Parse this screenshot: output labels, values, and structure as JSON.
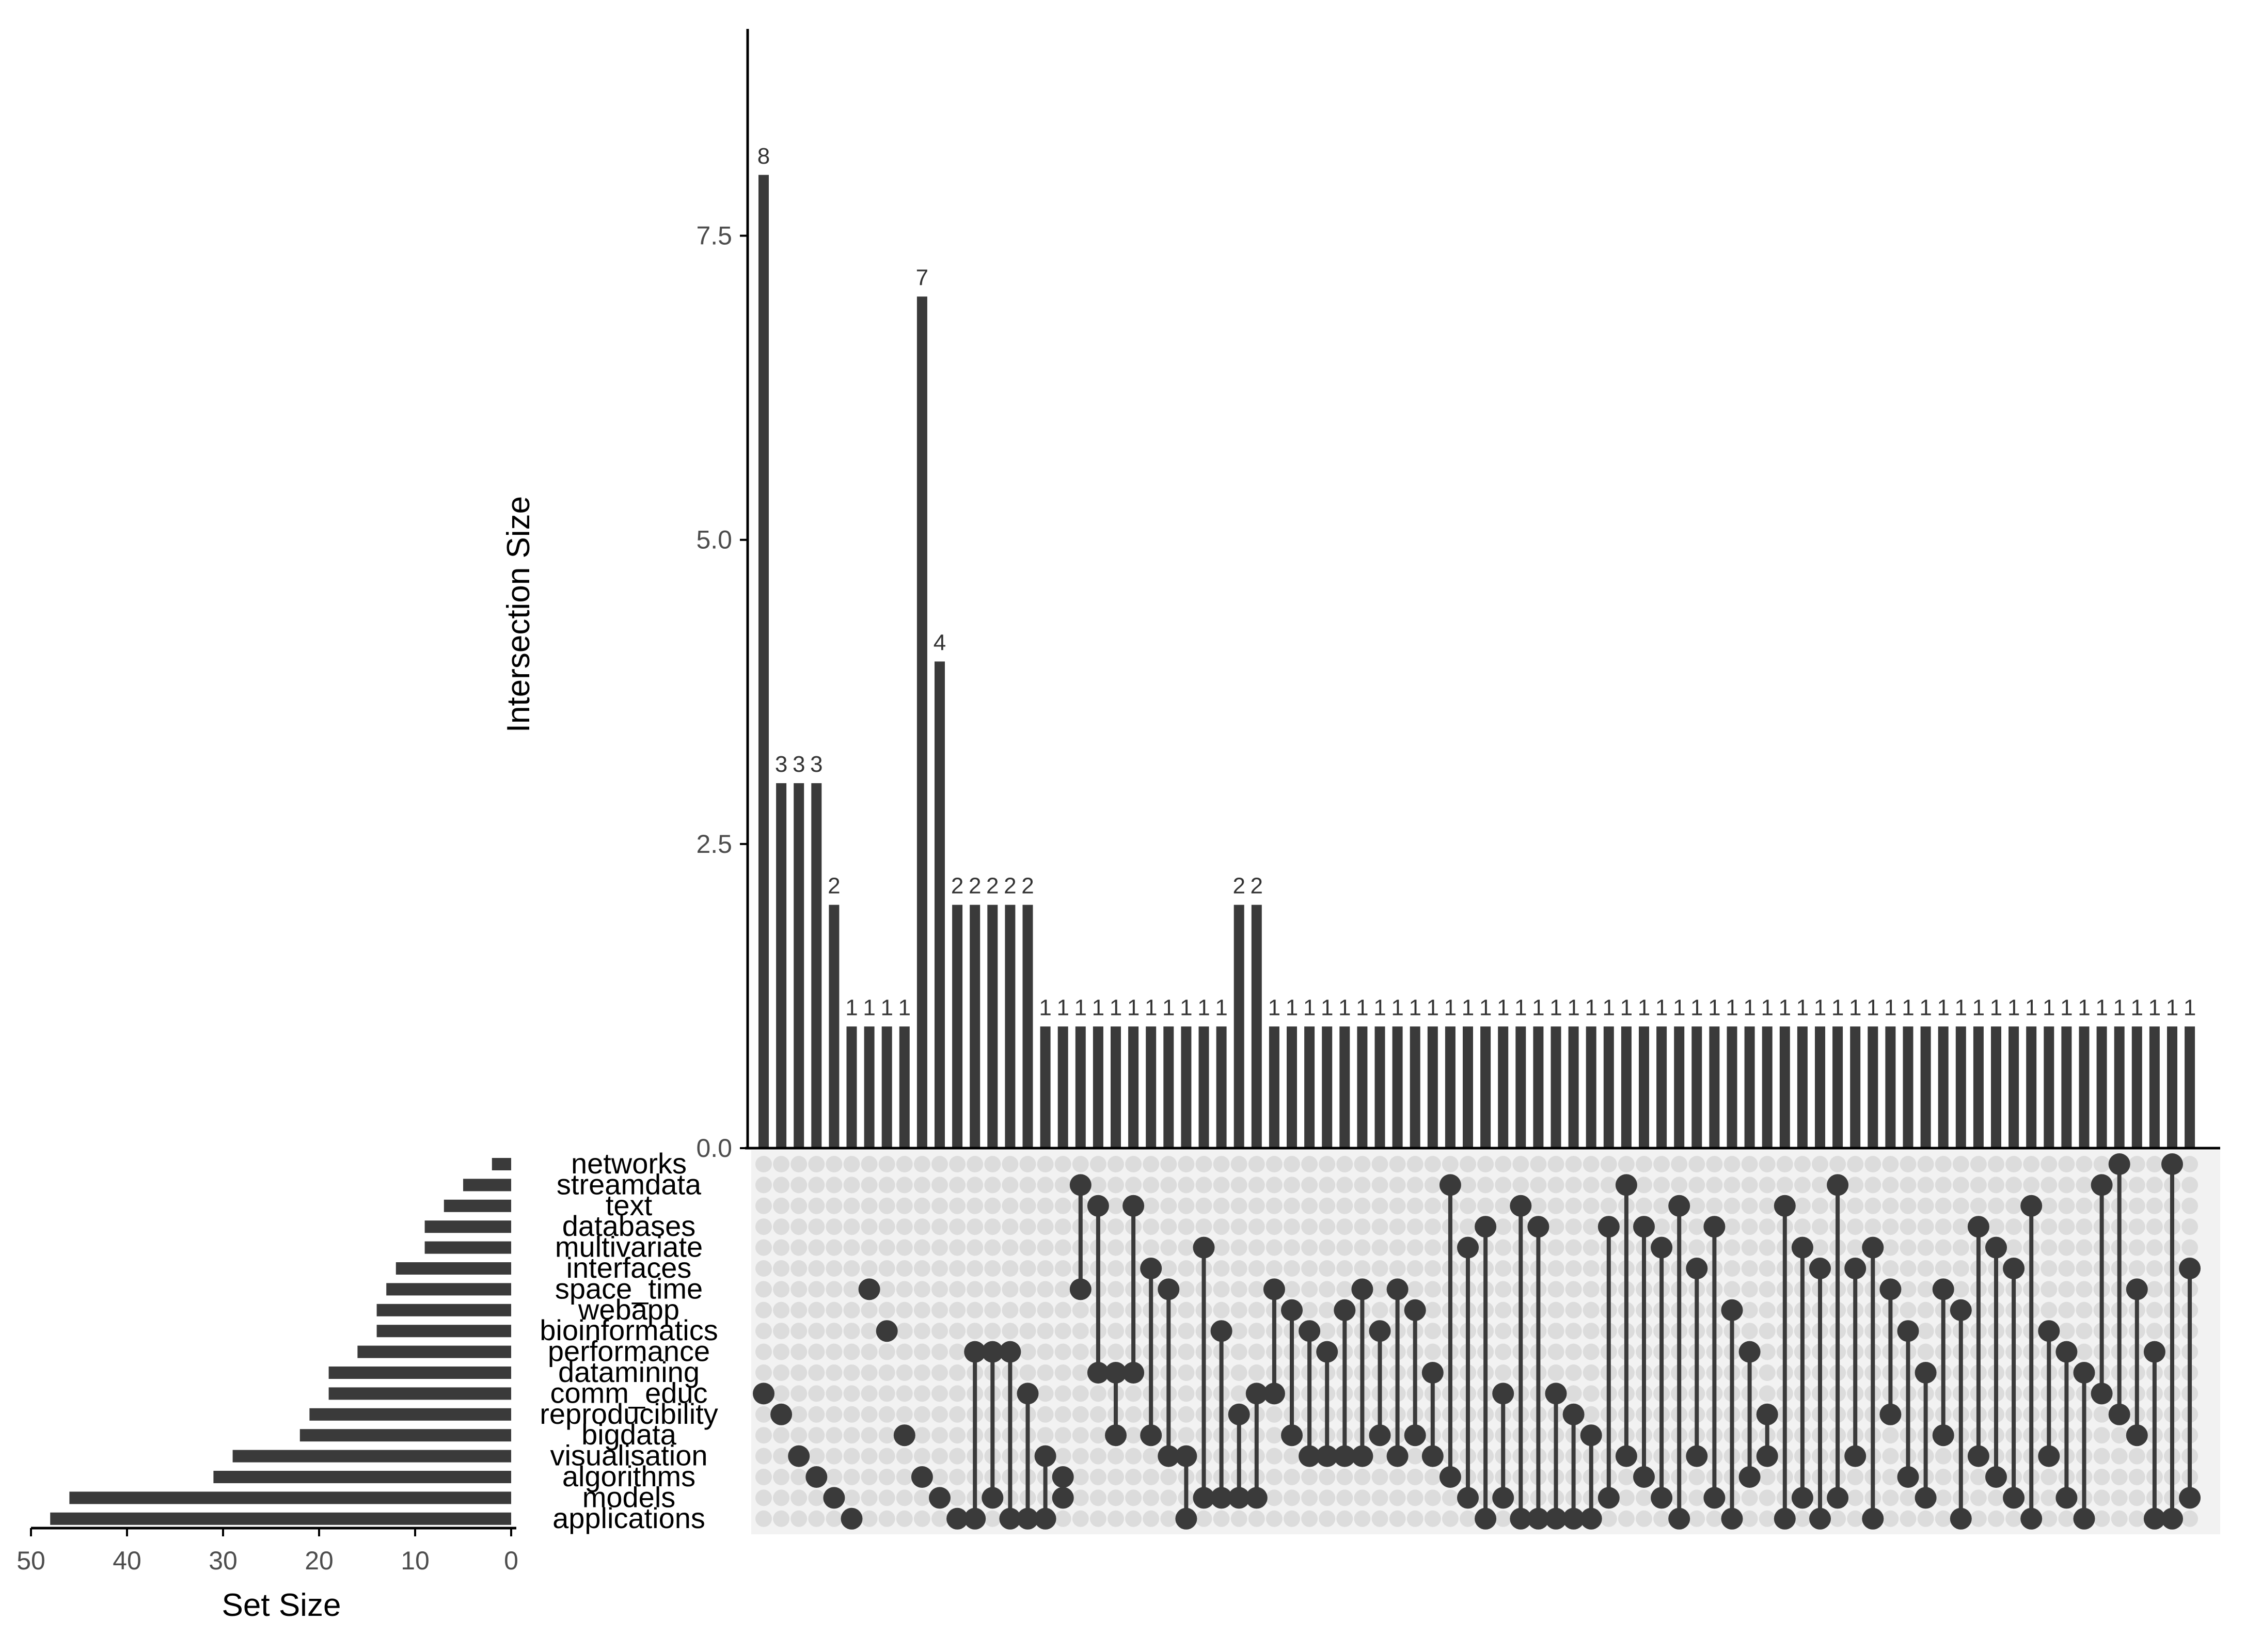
{
  "chart_data": {
    "type": "upset",
    "y_axis_title": "Intersection Size",
    "y_ticks": [
      "0.0",
      "2.5",
      "5.0",
      "7.5"
    ],
    "ylim": [
      0,
      9.2
    ],
    "set_size_axis_title": "Set Size",
    "set_size_ticks": [
      "50",
      "40",
      "30",
      "20",
      "10",
      "0"
    ],
    "set_size_lim": [
      0,
      50
    ],
    "sets": [
      "networks",
      "streamdata",
      "text",
      "databases",
      "multivariate",
      "interfaces",
      "space_time",
      "webapp",
      "bioinformatics",
      "performance",
      "datamining",
      "comm_educ",
      "reproducibility",
      "bigdata",
      "visualisation",
      "algorithms",
      "models",
      "applications"
    ],
    "set_sizes": [
      2,
      5,
      7,
      9,
      9,
      12,
      13,
      14,
      14,
      16,
      19,
      19,
      21,
      22,
      29,
      31,
      46,
      48
    ],
    "intersection_values": [
      8,
      3,
      3,
      3,
      2,
      1,
      1,
      1,
      1,
      7,
      4,
      2,
      2,
      2,
      2,
      2,
      1,
      1,
      1,
      1,
      1,
      1,
      1,
      1,
      1,
      1,
      1,
      2,
      2,
      1,
      1,
      1,
      1,
      1,
      1,
      1,
      1,
      1,
      1,
      1,
      1,
      1,
      1,
      1,
      1,
      1,
      1,
      1,
      1,
      1,
      1,
      1,
      1,
      1,
      1,
      1,
      1,
      1,
      1,
      1,
      1,
      1,
      1,
      1,
      1,
      1,
      1,
      1,
      1,
      1,
      1,
      1,
      1,
      1,
      1,
      1,
      1,
      1,
      1,
      1,
      1,
      1
    ],
    "intersection_members": [
      [
        11
      ],
      [
        12
      ],
      [
        14
      ],
      [
        15
      ],
      [
        16
      ],
      [
        17
      ],
      [
        6
      ],
      [
        8
      ],
      [
        13
      ],
      [
        15
      ],
      [
        16
      ],
      [
        17
      ],
      [
        9,
        17
      ],
      [
        9,
        16
      ],
      [
        9,
        17
      ],
      [
        11,
        17
      ],
      [
        14,
        17
      ],
      [
        16,
        15
      ],
      [
        1,
        6
      ],
      [
        2,
        10
      ],
      [
        10,
        13
      ],
      [
        2,
        10
      ],
      [
        5,
        13
      ],
      [
        6,
        14
      ],
      [
        14,
        17
      ],
      [
        4,
        16
      ],
      [
        8,
        16
      ],
      [
        12,
        16
      ],
      [
        11,
        16
      ],
      [
        6,
        11
      ],
      [
        7,
        13
      ],
      [
        8,
        14
      ],
      [
        9,
        14
      ],
      [
        7,
        14
      ],
      [
        6,
        14
      ],
      [
        8,
        13
      ],
      [
        6,
        14
      ],
      [
        7,
        13
      ],
      [
        10,
        14
      ],
      [
        1,
        15
      ],
      [
        4,
        16
      ],
      [
        3,
        17
      ],
      [
        11,
        16
      ],
      [
        2,
        17
      ],
      [
        3,
        17
      ],
      [
        11,
        17
      ],
      [
        12,
        17
      ],
      [
        13,
        17
      ],
      [
        3,
        16
      ],
      [
        1,
        14
      ],
      [
        3,
        15
      ],
      [
        4,
        16
      ],
      [
        2,
        17
      ],
      [
        5,
        14
      ],
      [
        3,
        16
      ],
      [
        7,
        17
      ],
      [
        9,
        15
      ],
      [
        12,
        14
      ],
      [
        2,
        17
      ],
      [
        4,
        16
      ],
      [
        5,
        17
      ],
      [
        1,
        16
      ],
      [
        5,
        14
      ],
      [
        4,
        17
      ],
      [
        6,
        12
      ],
      [
        8,
        15
      ],
      [
        10,
        16
      ],
      [
        6,
        13
      ],
      [
        7,
        17
      ],
      [
        3,
        14
      ],
      [
        4,
        15
      ],
      [
        5,
        16
      ],
      [
        2,
        17
      ],
      [
        8,
        14
      ],
      [
        9,
        16
      ],
      [
        10,
        17
      ],
      [
        1,
        11
      ],
      [
        0,
        12
      ],
      [
        6,
        13
      ],
      [
        9,
        17
      ],
      [
        0,
        17
      ],
      [
        5,
        16
      ]
    ]
  }
}
